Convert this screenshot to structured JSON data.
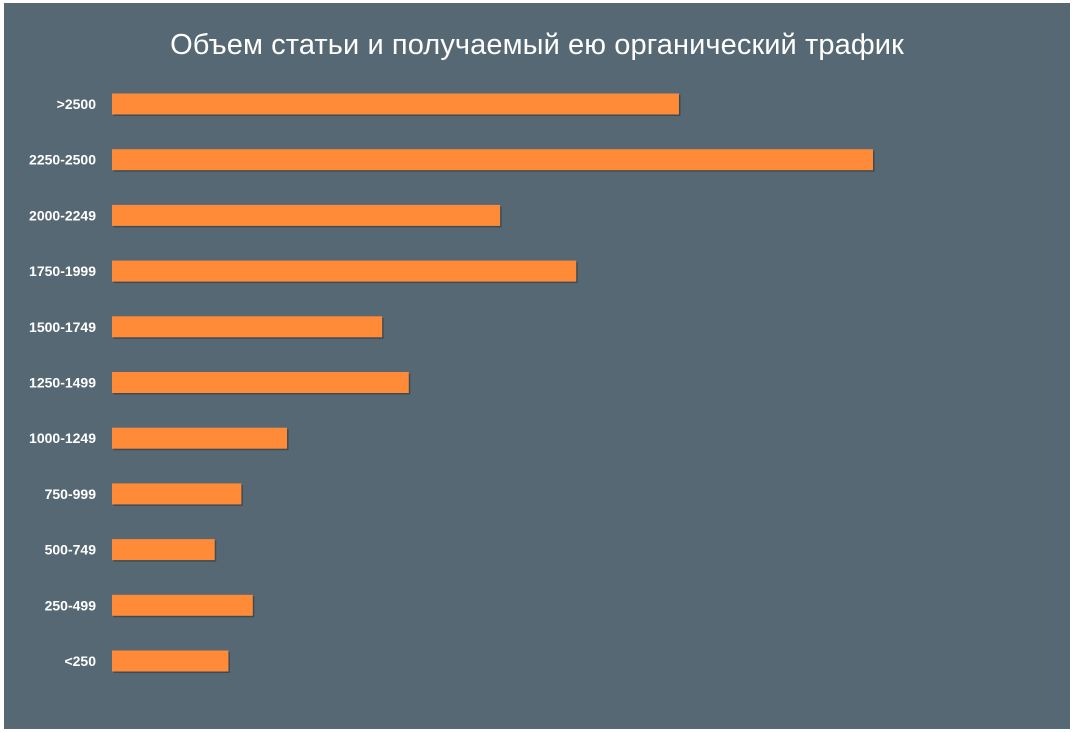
{
  "chart_data": {
    "type": "bar",
    "orientation": "horizontal",
    "title": "Объем статьи и получаемый ею органический трафик",
    "xlabel": "",
    "ylabel": "",
    "categories": [
      ">2500",
      "2250-2500",
      "2000-2249",
      "1750-1999",
      "1500-1749",
      "1250-1499",
      "1000-1249",
      "750-999",
      "500-749",
      "250-499",
      "<250"
    ],
    "values": [
      74.5,
      100,
      51,
      61,
      35.5,
      39,
      23,
      17,
      13.5,
      18.5,
      15.3
    ],
    "xlim": [
      0,
      100
    ],
    "grid": false,
    "legend": "none",
    "colors": {
      "background": "#566873",
      "bar": "#FF8A38",
      "text": "#ffffff"
    }
  }
}
